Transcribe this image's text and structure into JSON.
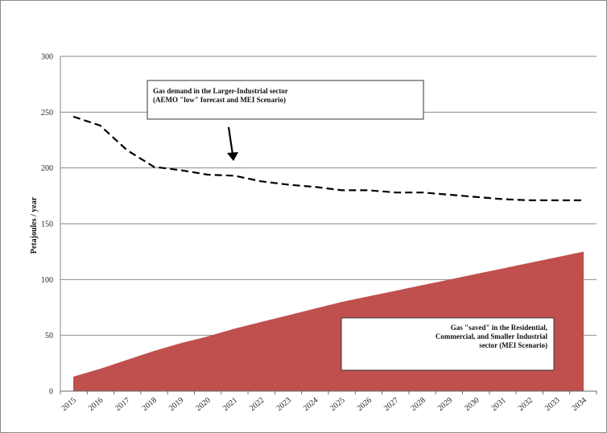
{
  "chart_data": {
    "type": "line",
    "title": "",
    "xlabel": "",
    "ylabel": "Petajoules / year",
    "ylim": [
      0,
      300
    ],
    "yticks": [
      0,
      50,
      100,
      150,
      200,
      250,
      300
    ],
    "grid": "horizontal",
    "categories": [
      "2015",
      "2016",
      "2017",
      "2018",
      "2019",
      "2020",
      "2021",
      "2022",
      "2023",
      "2024",
      "2025",
      "2026",
      "2027",
      "2028",
      "2029",
      "2030",
      "2031",
      "2032",
      "2033",
      "2034"
    ],
    "series": [
      {
        "kind": "dashed-line",
        "color": "#000000",
        "values": [
          246,
          238,
          216,
          201,
          198,
          194,
          193,
          188,
          185,
          183,
          180,
          180,
          178,
          178,
          176,
          174,
          172,
          171,
          171,
          171
        ]
      },
      {
        "kind": "area",
        "color": "#c0504d",
        "values": [
          13,
          20,
          28,
          36,
          43,
          49,
          56,
          62,
          68,
          74,
          80,
          85,
          90,
          95,
          100,
          105,
          110,
          115,
          120,
          125
        ]
      }
    ],
    "annotations": [
      {
        "lines": [
          "Gas demand in the Larger-Industrial sector",
          "(AEMO \"low\" forecast and MEI Scenario)"
        ],
        "align": "left"
      },
      {
        "lines": [
          "Gas \"saved\" in the Residential,",
          "Commercial, and Smaller Industrial",
          "sector (MEI Scenario)"
        ],
        "align": "right"
      }
    ]
  }
}
